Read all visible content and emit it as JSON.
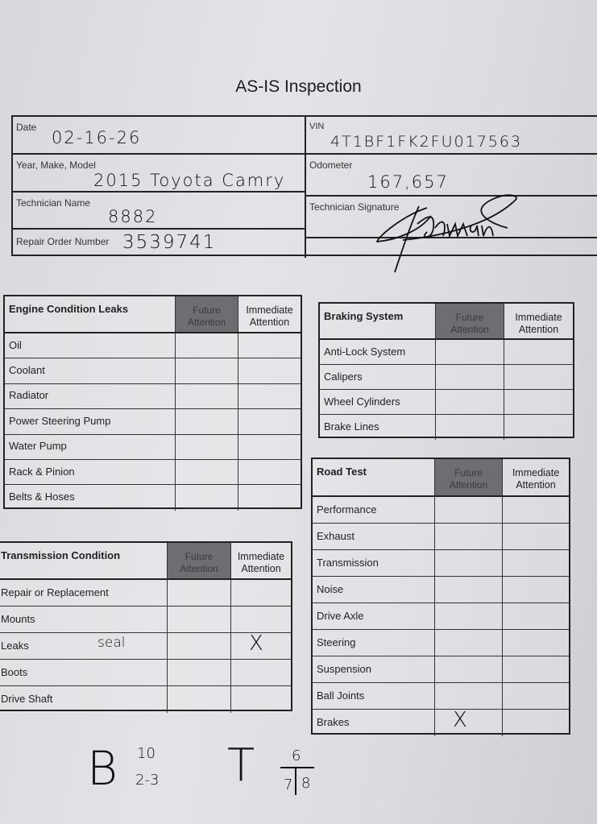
{
  "title": "AS-IS Inspection",
  "header": {
    "date_label": "Date",
    "date": "02-16-26",
    "vin_label": "VIN",
    "vin": "4T1BF1FK2FU017563",
    "ymm_label": "Year, Make, Model",
    "ymm": "2015 Toyota Camry",
    "odometer_label": "Odometer",
    "odometer": "167,657",
    "tech_name_label": "Technician Name",
    "tech_name": "8882",
    "tech_sig_label": "Technician Signature",
    "ro_label": "Repair Order Number",
    "ro": "3539741"
  },
  "columns": {
    "future": "Future Attention",
    "immediate": "Immediate Attention"
  },
  "tables": [
    {
      "id": "engine",
      "title": "Engine Condition Leaks",
      "rows": [
        {
          "label": "Oil"
        },
        {
          "label": "Coolant"
        },
        {
          "label": "Radiator"
        },
        {
          "label": "Power Steering Pump"
        },
        {
          "label": "Water Pump"
        },
        {
          "label": "Rack & Pinion"
        },
        {
          "label": "Belts & Hoses"
        }
      ]
    },
    {
      "id": "braking",
      "title": "Braking System",
      "rows": [
        {
          "label": "Anti-Lock System"
        },
        {
          "label": "Calipers"
        },
        {
          "label": "Wheel Cylinders"
        },
        {
          "label": "Brake Lines"
        }
      ]
    },
    {
      "id": "road",
      "title": "Road Test",
      "rows": [
        {
          "label": "Performance"
        },
        {
          "label": "Exhaust"
        },
        {
          "label": "Transmission"
        },
        {
          "label": "Noise"
        },
        {
          "label": "Drive Axle"
        },
        {
          "label": "Steering"
        },
        {
          "label": "Suspension"
        },
        {
          "label": "Ball Joints"
        },
        {
          "label": "Brakes",
          "future": "X"
        }
      ]
    },
    {
      "id": "transmission",
      "title": "Transmission Condition",
      "rows": [
        {
          "label": "Repair or Replacement"
        },
        {
          "label": "Mounts"
        },
        {
          "label": "Leaks",
          "note": "seal",
          "immediate": "X"
        },
        {
          "label": "Boots"
        },
        {
          "label": "Drive Shaft"
        }
      ]
    }
  ],
  "footer_notes": {
    "b_letter": "B",
    "b_top": "10",
    "b_bottom": "2-3",
    "t_letter": "T",
    "t_top": "6",
    "t_bottom_left": "7",
    "t_bottom_right": "8"
  }
}
